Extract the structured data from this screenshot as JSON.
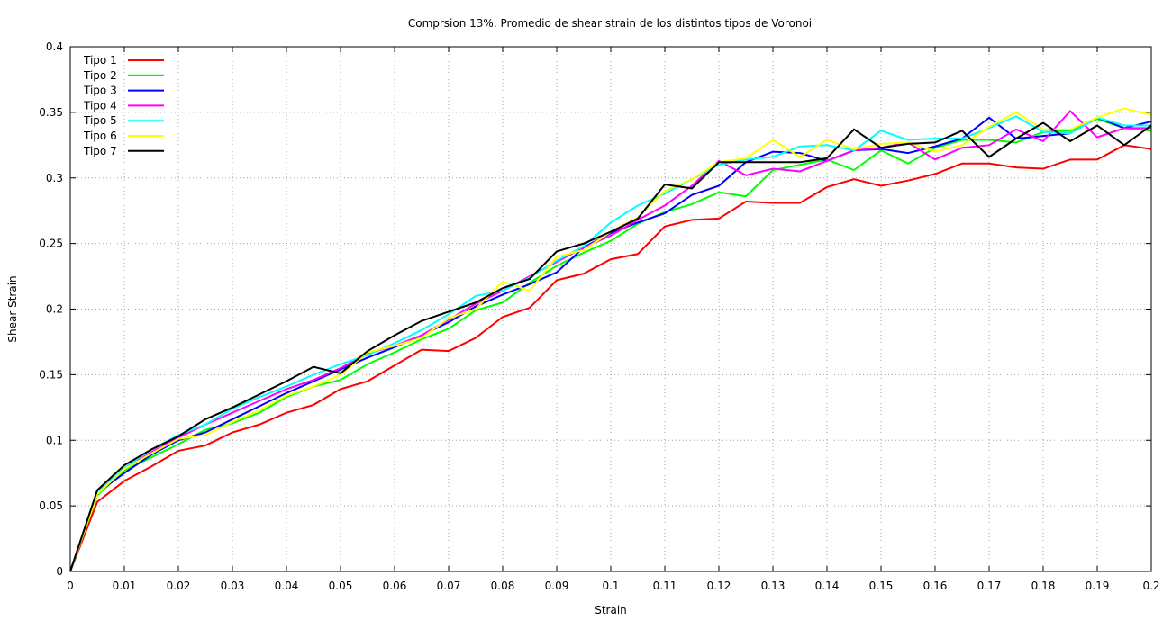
{
  "chart_data": {
    "type": "line",
    "title": "Comprsion 13%. Promedio de shear strain de los distintos tipos de Voronoi",
    "xlabel": "Strain",
    "ylabel": "Shear Strain",
    "xlim": [
      0,
      0.2
    ],
    "ylim": [
      0,
      0.4
    ],
    "xticks": [
      "0",
      "0.01",
      "0.02",
      "0.03",
      "0.04",
      "0.05",
      "0.06",
      "0.07",
      "0.08",
      "0.09",
      "0.1",
      "0.11",
      "0.12",
      "0.13",
      "0.14",
      "0.15",
      "0.16",
      "0.17",
      "0.18",
      "0.19",
      "0.2"
    ],
    "yticks": [
      "0",
      "0.05",
      "0.1",
      "0.15",
      "0.2",
      "0.25",
      "0.3",
      "0.35",
      "0.4"
    ],
    "grid": true,
    "legend_position": "top-left",
    "x": [
      0,
      0.005,
      0.01,
      0.015,
      0.02,
      0.025,
      0.03,
      0.035,
      0.04,
      0.045,
      0.05,
      0.055,
      0.06,
      0.065,
      0.07,
      0.075,
      0.08,
      0.085,
      0.09,
      0.095,
      0.1,
      0.105,
      0.11,
      0.115,
      0.12,
      0.125,
      0.13,
      0.135,
      0.14,
      0.145,
      0.15,
      0.155,
      0.16,
      0.165,
      0.17,
      0.175,
      0.18,
      0.185,
      0.19,
      0.195,
      0.2
    ],
    "series": [
      {
        "name": "Tipo 1",
        "color": "#ff0000",
        "values": [
          0,
          0.053,
          0.069,
          0.08,
          0.092,
          0.096,
          0.106,
          0.112,
          0.121,
          0.127,
          0.139,
          0.145,
          0.157,
          0.169,
          0.168,
          0.178,
          0.194,
          0.201,
          0.222,
          0.227,
          0.238,
          0.242,
          0.263,
          0.268,
          0.269,
          0.282,
          0.281,
          0.281,
          0.293,
          0.299,
          0.294,
          0.298,
          0.303,
          0.311,
          0.311,
          0.308,
          0.307,
          0.314,
          0.314,
          0.325,
          0.322
        ]
      },
      {
        "name": "Tipo 2",
        "color": "#00ff00",
        "values": [
          0,
          0.058,
          0.077,
          0.087,
          0.097,
          0.108,
          0.113,
          0.121,
          0.133,
          0.141,
          0.146,
          0.158,
          0.167,
          0.177,
          0.185,
          0.199,
          0.205,
          0.22,
          0.233,
          0.243,
          0.252,
          0.265,
          0.274,
          0.28,
          0.289,
          0.286,
          0.306,
          0.31,
          0.314,
          0.306,
          0.321,
          0.311,
          0.323,
          0.329,
          0.329,
          0.327,
          0.335,
          0.336,
          0.345,
          0.338,
          0.336
        ]
      },
      {
        "name": "Tipo 3",
        "color": "#0000ff",
        "values": [
          0,
          0.06,
          0.075,
          0.089,
          0.1,
          0.106,
          0.116,
          0.126,
          0.136,
          0.145,
          0.154,
          0.163,
          0.171,
          0.18,
          0.19,
          0.202,
          0.211,
          0.219,
          0.228,
          0.247,
          0.258,
          0.266,
          0.273,
          0.287,
          0.294,
          0.312,
          0.32,
          0.319,
          0.313,
          0.321,
          0.322,
          0.319,
          0.324,
          0.33,
          0.346,
          0.33,
          0.332,
          0.334,
          0.346,
          0.338,
          0.343
        ]
      },
      {
        "name": "Tipo 4",
        "color": "#ff00ff",
        "values": [
          0,
          0.061,
          0.078,
          0.091,
          0.102,
          0.112,
          0.121,
          0.13,
          0.139,
          0.146,
          0.155,
          0.166,
          0.172,
          0.18,
          0.192,
          0.204,
          0.214,
          0.225,
          0.236,
          0.247,
          0.256,
          0.268,
          0.279,
          0.294,
          0.313,
          0.302,
          0.307,
          0.305,
          0.313,
          0.321,
          0.323,
          0.327,
          0.314,
          0.323,
          0.325,
          0.337,
          0.328,
          0.351,
          0.331,
          0.338,
          0.338
        ]
      },
      {
        "name": "Tipo 5",
        "color": "#00ffff",
        "values": [
          0,
          0.06,
          0.079,
          0.093,
          0.104,
          0.112,
          0.124,
          0.133,
          0.141,
          0.15,
          0.158,
          0.165,
          0.174,
          0.184,
          0.196,
          0.21,
          0.214,
          0.224,
          0.237,
          0.248,
          0.266,
          0.279,
          0.288,
          0.299,
          0.31,
          0.314,
          0.316,
          0.324,
          0.325,
          0.321,
          0.336,
          0.329,
          0.33,
          0.33,
          0.338,
          0.347,
          0.335,
          0.334,
          0.346,
          0.34,
          0.34
        ]
      },
      {
        "name": "Tipo 6",
        "color": "#ffff00",
        "values": [
          0,
          0.059,
          0.078,
          0.09,
          0.101,
          0.104,
          0.114,
          0.123,
          0.134,
          0.141,
          0.15,
          0.167,
          0.172,
          0.178,
          0.193,
          0.2,
          0.221,
          0.214,
          0.24,
          0.245,
          0.259,
          0.27,
          0.29,
          0.299,
          0.312,
          0.315,
          0.329,
          0.316,
          0.329,
          0.322,
          0.326,
          0.327,
          0.32,
          0.325,
          0.339,
          0.35,
          0.337,
          0.337,
          0.346,
          0.353,
          0.348
        ]
      },
      {
        "name": "Tipo 7",
        "color": "#000000",
        "values": [
          0,
          0.062,
          0.081,
          0.093,
          0.103,
          0.116,
          0.125,
          0.135,
          0.145,
          0.156,
          0.151,
          0.168,
          0.18,
          0.191,
          0.198,
          0.205,
          0.216,
          0.223,
          0.244,
          0.25,
          0.259,
          0.269,
          0.295,
          0.292,
          0.312,
          0.312,
          0.312,
          0.312,
          0.315,
          0.337,
          0.323,
          0.326,
          0.327,
          0.336,
          0.316,
          0.33,
          0.342,
          0.328,
          0.34,
          0.325,
          0.34
        ]
      }
    ]
  }
}
